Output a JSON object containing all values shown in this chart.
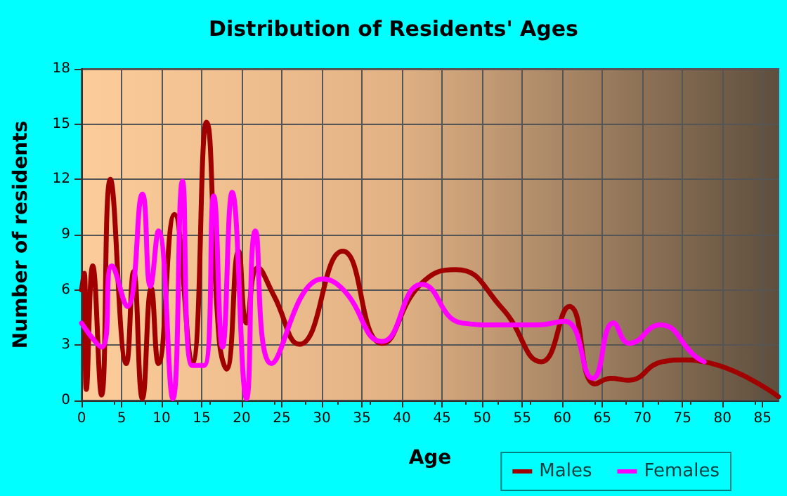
{
  "chart_data": {
    "type": "line",
    "title": "Distribution of Residents' Ages",
    "xlabel": "Age",
    "ylabel": "Number of residents",
    "xlim": [
      0,
      87
    ],
    "xticks": [
      0,
      5,
      10,
      15,
      20,
      25,
      30,
      35,
      40,
      45,
      50,
      55,
      60,
      65,
      70,
      75,
      80,
      85
    ],
    "ylim": [
      0,
      18
    ],
    "yticks": [
      0,
      3,
      6,
      9,
      12,
      15,
      18
    ],
    "grid": true,
    "legend": "bottom right",
    "marker": "none",
    "line_style": "solid",
    "series": [
      {
        "name": "Males",
        "color": "#a00000",
        "x": [
          0,
          0.35,
          0.6,
          1.4,
          2.5,
          3.6,
          5.6,
          6.5,
          7.6,
          8.7,
          9.6,
          11.6,
          13.8,
          15.6,
          17.2,
          18.1,
          19.6,
          20.6,
          22,
          24,
          27.2,
          32.6,
          37.5,
          42.3,
          46.7,
          52.5,
          57.4,
          60.9,
          64.1,
          66.1,
          68.2,
          72.5,
          75.1,
          77.7,
          87
        ],
        "values": [
          6,
          6.9,
          0.6,
          7.3,
          0.3,
          12,
          2,
          7,
          0.1,
          6.1,
          2,
          10.1,
          2,
          15.1,
          3.2,
          1.7,
          8.1,
          4.2,
          7.2,
          5.7,
          3.05,
          8.1,
          3.1,
          6.3,
          7.1,
          5,
          2.1,
          5.1,
          0.9,
          1.2,
          1.1,
          2.1,
          2.2,
          2.1,
          0.2
        ]
      },
      {
        "name": "Females",
        "color": "#ff00ff",
        "x": [
          0,
          2.5,
          3.8,
          5.7,
          7.6,
          8.6,
          9.6,
          11.4,
          12.6,
          13.8,
          15.3,
          16.5,
          17.6,
          18.8,
          20.6,
          21.7,
          23.7,
          30.1,
          32.7,
          37.5,
          42.5,
          47.5,
          52.1,
          56.8,
          60.3,
          63.8,
          66.4,
          68.4,
          72.2,
          76.6,
          77.7
        ],
        "values": [
          4.2,
          2.9,
          7.3,
          5.1,
          11.2,
          6.2,
          9.2,
          0.1,
          11.9,
          1.9,
          1.9,
          11.1,
          2.9,
          11.3,
          0.1,
          9.2,
          2,
          6.6,
          6,
          3.2,
          6.3,
          4.2,
          4.1,
          4.1,
          4.3,
          1.2,
          4.2,
          3.1,
          4.1,
          2.4,
          2.1
        ]
      }
    ]
  }
}
